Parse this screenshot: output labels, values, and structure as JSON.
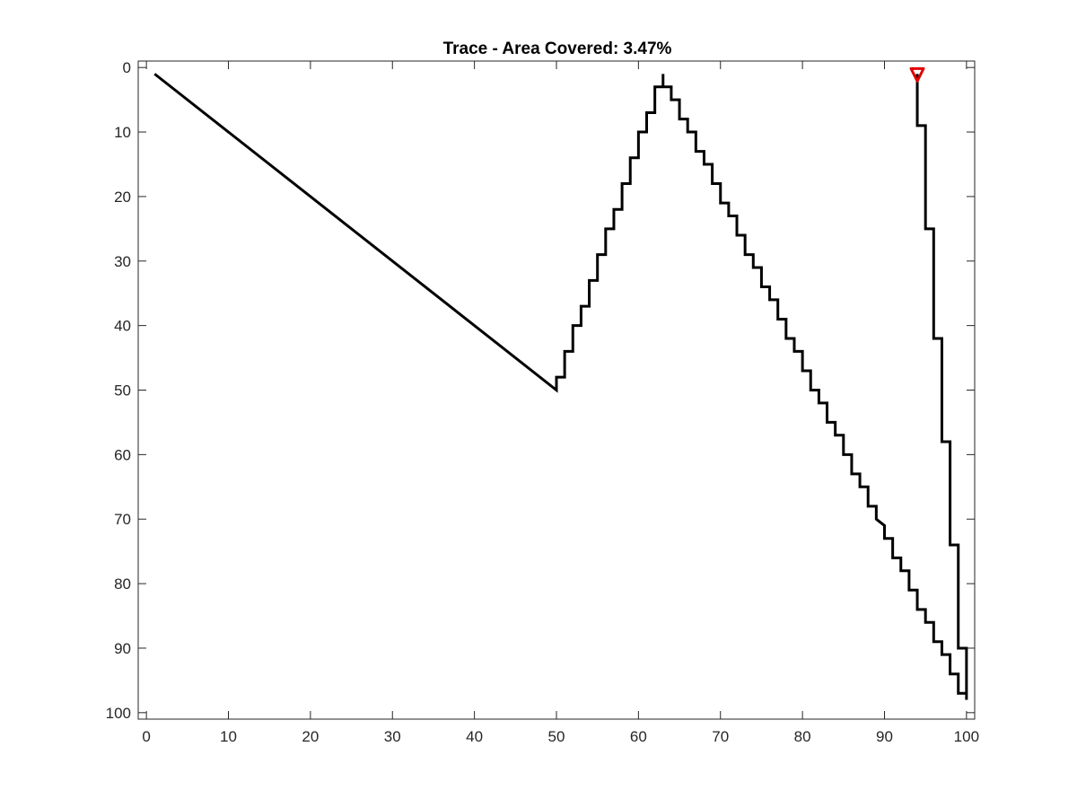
{
  "chart_data": {
    "type": "line",
    "title": "Trace - Area Covered: 3.47%",
    "xlabel": "",
    "ylabel": "",
    "xlim": [
      -1,
      101
    ],
    "ylim": [
      -1,
      101
    ],
    "y_reversed": true,
    "grid": false,
    "box": true,
    "xticks": [
      0,
      10,
      20,
      30,
      40,
      50,
      60,
      70,
      80,
      90,
      100
    ],
    "yticks": [
      0,
      10,
      20,
      30,
      40,
      50,
      60,
      70,
      80,
      90,
      100
    ],
    "colors": {
      "trace": "#000000",
      "marker": "#e00000",
      "axes": "#262626"
    },
    "series": [
      {
        "style": "solid",
        "points": [
          [
            1,
            1
          ],
          [
            50,
            50
          ],
          [
            50,
            48
          ],
          [
            51,
            48
          ],
          [
            51,
            44
          ],
          [
            52,
            44
          ],
          [
            52,
            40
          ],
          [
            53,
            40
          ],
          [
            53,
            37
          ],
          [
            54,
            37
          ],
          [
            54,
            33
          ],
          [
            55,
            33
          ],
          [
            55,
            29
          ],
          [
            56,
            29
          ],
          [
            56,
            25
          ],
          [
            57,
            25
          ],
          [
            57,
            22
          ],
          [
            58,
            22
          ],
          [
            58,
            18
          ],
          [
            59,
            18
          ],
          [
            59,
            14
          ],
          [
            60,
            14
          ],
          [
            60,
            10
          ],
          [
            61,
            10
          ],
          [
            61,
            7
          ],
          [
            62,
            7
          ],
          [
            62,
            3
          ],
          [
            63,
            3
          ],
          [
            63,
            1
          ],
          [
            63,
            3
          ],
          [
            64,
            3
          ],
          [
            64,
            5
          ],
          [
            65,
            5
          ],
          [
            65,
            8
          ],
          [
            66,
            8
          ],
          [
            66,
            10
          ],
          [
            67,
            10
          ],
          [
            67,
            13
          ],
          [
            68,
            13
          ],
          [
            68,
            15
          ],
          [
            69,
            15
          ],
          [
            69,
            18
          ],
          [
            70,
            18
          ],
          [
            70,
            21
          ],
          [
            71,
            21
          ],
          [
            71,
            23
          ],
          [
            72,
            23
          ],
          [
            72,
            26
          ],
          [
            73,
            26
          ],
          [
            73,
            29
          ],
          [
            74,
            29
          ],
          [
            74,
            31
          ],
          [
            75,
            31
          ],
          [
            75,
            34
          ],
          [
            76,
            34
          ],
          [
            76,
            36
          ],
          [
            77,
            36
          ],
          [
            77,
            39
          ],
          [
            78,
            39
          ],
          [
            78,
            42
          ],
          [
            79,
            42
          ],
          [
            79,
            44
          ],
          [
            80,
            44
          ],
          [
            80,
            47
          ],
          [
            81,
            47
          ],
          [
            81,
            50
          ],
          [
            82,
            50
          ],
          [
            82,
            52
          ],
          [
            83,
            52
          ],
          [
            83,
            55
          ],
          [
            84,
            55
          ],
          [
            84,
            57
          ],
          [
            85,
            57
          ],
          [
            85,
            60
          ],
          [
            86,
            60
          ],
          [
            86,
            63
          ],
          [
            87,
            63
          ],
          [
            87,
            65
          ],
          [
            88,
            65
          ],
          [
            88,
            68
          ],
          [
            89,
            68
          ],
          [
            89,
            70
          ],
          [
            90,
            71
          ],
          [
            90,
            73
          ],
          [
            91,
            73
          ],
          [
            91,
            76
          ],
          [
            92,
            76
          ],
          [
            92,
            78
          ],
          [
            93,
            78
          ],
          [
            93,
            81
          ],
          [
            94,
            81
          ],
          [
            94,
            84
          ],
          [
            95,
            84
          ],
          [
            95,
            86
          ],
          [
            96,
            86
          ],
          [
            96,
            89
          ],
          [
            97,
            89
          ],
          [
            97,
            91
          ],
          [
            98,
            91
          ],
          [
            98,
            94
          ],
          [
            99,
            94
          ],
          [
            99,
            97
          ],
          [
            100,
            97
          ],
          [
            100,
            98
          ],
          [
            100,
            90
          ],
          [
            99,
            90
          ],
          [
            99,
            74
          ],
          [
            98,
            74
          ],
          [
            98,
            58
          ],
          [
            97,
            58
          ],
          [
            97,
            42
          ],
          [
            96,
            42
          ],
          [
            96,
            25
          ],
          [
            95,
            25
          ],
          [
            95,
            9
          ],
          [
            94,
            9
          ],
          [
            94,
            1
          ]
        ]
      }
    ],
    "marker": {
      "shape": "triangle-down",
      "x": 94,
      "y": 1
    }
  }
}
